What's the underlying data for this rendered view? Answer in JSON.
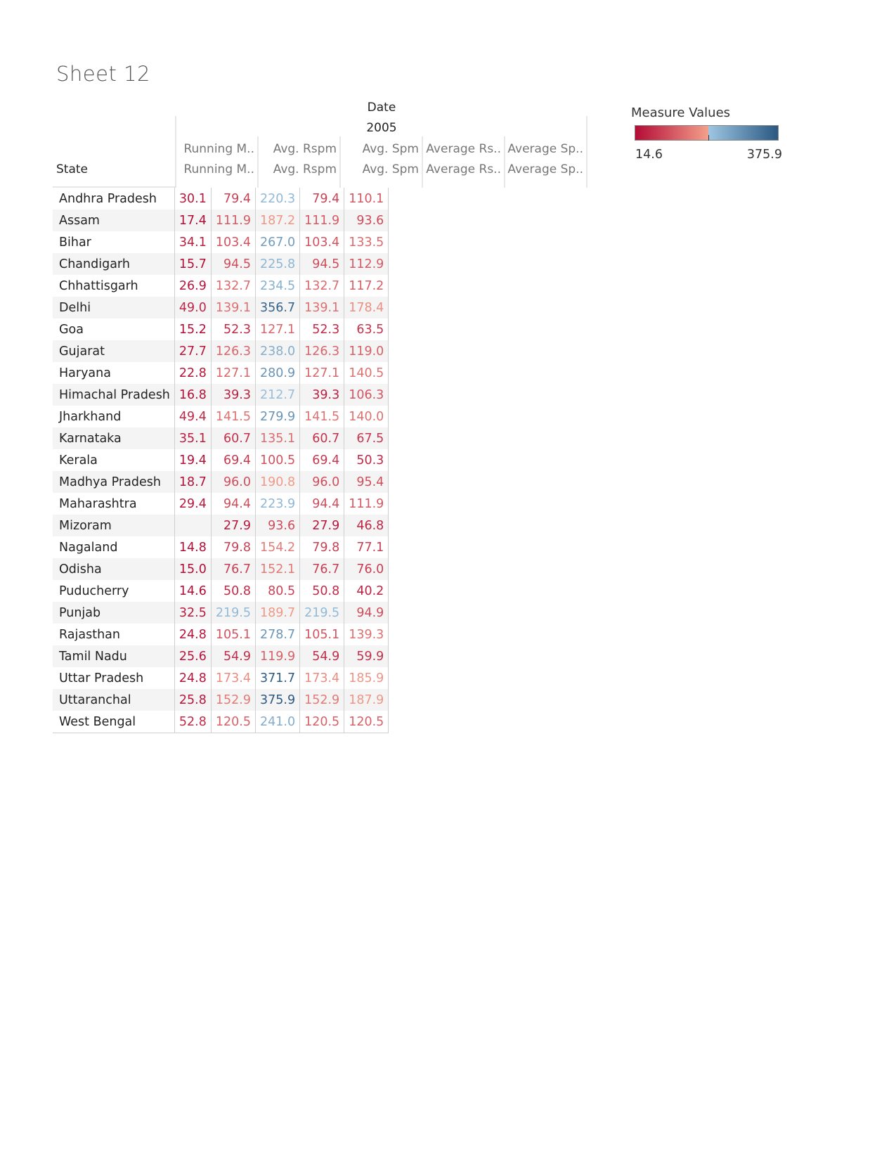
{
  "title": "Sheet 12",
  "header": {
    "date_label": "Date",
    "year_label": "2005",
    "row_header": "State",
    "columns_top": [
      "Running M..",
      "Avg. Rspm",
      "Avg. Spm",
      "Average Rs..",
      "Average Sp.."
    ],
    "columns_bottom": [
      "Running M..",
      "Avg. Rspm",
      "Avg. Spm",
      "Average Rs..",
      "Average Sp.."
    ]
  },
  "legend": {
    "title": "Measure Values",
    "min_label": "14.6",
    "max_label": "375.9",
    "min": 14.6,
    "max": 375.9,
    "mid": 200,
    "colors": {
      "low": "#b30c36",
      "mid_low": "#f4a08c",
      "mid_high": "#9ec6e2",
      "high": "#2a5882"
    }
  },
  "chart_data": {
    "type": "table",
    "title": "Sheet 12",
    "column_header": "Date: 2005",
    "row_header": "State",
    "columns": [
      "Running M..",
      "Avg. Rspm",
      "Avg. Spm",
      "Average Rs..",
      "Average Sp.."
    ],
    "rows": [
      {
        "state": "Andhra Pradesh",
        "values": [
          "30.1",
          "79.4",
          "220.3",
          "79.4",
          "110.1"
        ]
      },
      {
        "state": "Assam",
        "values": [
          "17.4",
          "111.9",
          "187.2",
          "111.9",
          "93.6"
        ]
      },
      {
        "state": "Bihar",
        "values": [
          "34.1",
          "103.4",
          "267.0",
          "103.4",
          "133.5"
        ]
      },
      {
        "state": "Chandigarh",
        "values": [
          "15.7",
          "94.5",
          "225.8",
          "94.5",
          "112.9"
        ]
      },
      {
        "state": "Chhattisgarh",
        "values": [
          "26.9",
          "132.7",
          "234.5",
          "132.7",
          "117.2"
        ]
      },
      {
        "state": "Delhi",
        "values": [
          "49.0",
          "139.1",
          "356.7",
          "139.1",
          "178.4"
        ]
      },
      {
        "state": "Goa",
        "values": [
          "15.2",
          "52.3",
          "127.1",
          "52.3",
          "63.5"
        ]
      },
      {
        "state": "Gujarat",
        "values": [
          "27.7",
          "126.3",
          "238.0",
          "126.3",
          "119.0"
        ]
      },
      {
        "state": "Haryana",
        "values": [
          "22.8",
          "127.1",
          "280.9",
          "127.1",
          "140.5"
        ]
      },
      {
        "state": "Himachal Pradesh",
        "values": [
          "16.8",
          "39.3",
          "212.7",
          "39.3",
          "106.3"
        ]
      },
      {
        "state": "Jharkhand",
        "values": [
          "49.4",
          "141.5",
          "279.9",
          "141.5",
          "140.0"
        ]
      },
      {
        "state": "Karnataka",
        "values": [
          "35.1",
          "60.7",
          "135.1",
          "60.7",
          "67.5"
        ]
      },
      {
        "state": "Kerala",
        "values": [
          "19.4",
          "69.4",
          "100.5",
          "69.4",
          "50.3"
        ]
      },
      {
        "state": "Madhya Pradesh",
        "values": [
          "18.7",
          "96.0",
          "190.8",
          "96.0",
          "95.4"
        ]
      },
      {
        "state": "Maharashtra",
        "values": [
          "29.4",
          "94.4",
          "223.9",
          "94.4",
          "111.9"
        ]
      },
      {
        "state": "Mizoram",
        "values": [
          "",
          "27.9",
          "93.6",
          "27.9",
          "46.8"
        ]
      },
      {
        "state": "Nagaland",
        "values": [
          "14.8",
          "79.8",
          "154.2",
          "79.8",
          "77.1"
        ]
      },
      {
        "state": "Odisha",
        "values": [
          "15.0",
          "76.7",
          "152.1",
          "76.7",
          "76.0"
        ]
      },
      {
        "state": "Puducherry",
        "values": [
          "14.6",
          "50.8",
          "80.5",
          "50.8",
          "40.2"
        ]
      },
      {
        "state": "Punjab",
        "values": [
          "32.5",
          "219.5",
          "189.7",
          "219.5",
          "94.9"
        ]
      },
      {
        "state": "Rajasthan",
        "values": [
          "24.8",
          "105.1",
          "278.7",
          "105.1",
          "139.3"
        ]
      },
      {
        "state": "Tamil Nadu",
        "values": [
          "25.6",
          "54.9",
          "119.9",
          "54.9",
          "59.9"
        ]
      },
      {
        "state": "Uttar Pradesh",
        "values": [
          "24.8",
          "173.4",
          "371.7",
          "173.4",
          "185.9"
        ]
      },
      {
        "state": "Uttaranchal",
        "values": [
          "25.8",
          "152.9",
          "375.9",
          "152.9",
          "187.9"
        ]
      },
      {
        "state": "West Bengal",
        "values": [
          "52.8",
          "120.5",
          "241.0",
          "120.5",
          "120.5"
        ]
      }
    ]
  }
}
